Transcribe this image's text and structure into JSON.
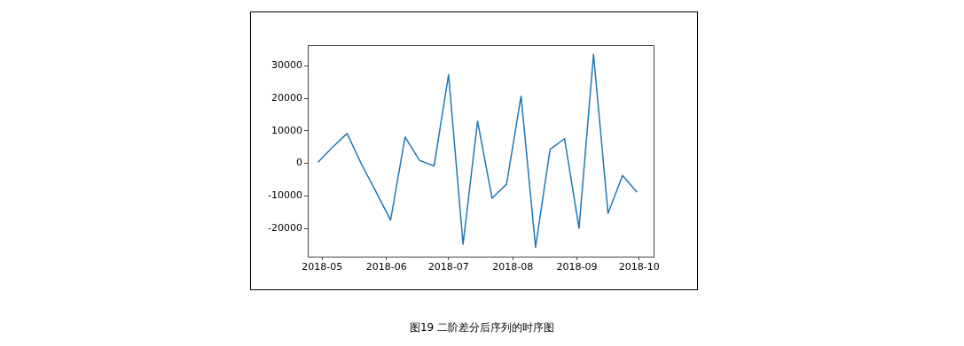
{
  "chart_data": {
    "type": "line",
    "x": [
      "2018-04-29",
      "2018-05-06",
      "2018-05-13",
      "2018-05-20",
      "2018-05-27",
      "2018-06-03",
      "2018-06-10",
      "2018-06-17",
      "2018-06-24",
      "2018-07-01",
      "2018-07-08",
      "2018-07-15",
      "2018-07-22",
      "2018-07-29",
      "2018-08-05",
      "2018-08-12",
      "2018-08-19",
      "2018-08-26",
      "2018-09-02",
      "2018-09-09",
      "2018-09-16",
      "2018-09-23",
      "2018-09-30"
    ],
    "series": [
      {
        "color": "#1f77b4",
        "values": [
          400,
          5000,
          9200,
          -300,
          -8800,
          -17500,
          8100,
          900,
          -800,
          27300,
          -24900,
          13000,
          -10700,
          -6400,
          20700,
          -25800,
          4300,
          7600,
          -20000,
          33600,
          -15400,
          -3700,
          -8900
        ]
      }
    ],
    "xlim": [
      "2018-04-24",
      "2018-10-08"
    ],
    "xticks": [
      {
        "value": "2018-05-01",
        "label": "2018-05"
      },
      {
        "value": "2018-06-01",
        "label": "2018-06"
      },
      {
        "value": "2018-07-01",
        "label": "2018-07"
      },
      {
        "value": "2018-08-01",
        "label": "2018-08"
      },
      {
        "value": "2018-09-01",
        "label": "2018-09"
      },
      {
        "value": "2018-10-01",
        "label": "2018-10"
      }
    ],
    "ylim": [
      -28700,
      36400
    ],
    "yticks": [
      -20000,
      -10000,
      0,
      10000,
      20000,
      30000
    ],
    "annotations": [
      "图19 二阶差分后序列的时序图"
    ]
  }
}
